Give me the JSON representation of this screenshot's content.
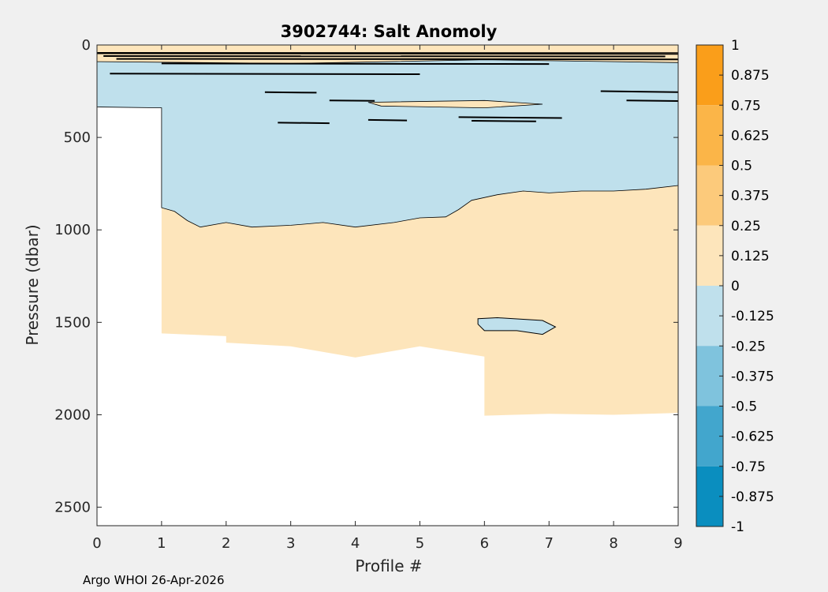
{
  "chart_data": {
    "type": "contour",
    "title": "3902744: Salt Anomoly",
    "xlabel": "Profile #",
    "ylabel": "Pressure (dbar)",
    "xlim": [
      0,
      9
    ],
    "ylim": [
      0,
      2600
    ],
    "y_reversed": true,
    "x_ticks": [
      "0",
      "1",
      "2",
      "3",
      "4",
      "5",
      "6",
      "7",
      "8",
      "9"
    ],
    "y_ticks": [
      "0",
      "500",
      "1000",
      "1500",
      "2000",
      "2500"
    ],
    "colorbar": {
      "range": [
        -1,
        1
      ],
      "tick_labels": [
        "1",
        "0.875",
        "0.75",
        "0.625",
        "0.5",
        "0.375",
        "0.25",
        "0.125",
        "0",
        "-0.125",
        "-0.25",
        "-0.375",
        "-0.5",
        "-0.625",
        "-0.75",
        "-0.875",
        "-1"
      ],
      "bands": [
        {
          "from": 0.75,
          "to": 1.0,
          "color": "#fa9e1a"
        },
        {
          "from": 0.5,
          "to": 0.75,
          "color": "#fbb548"
        },
        {
          "from": 0.25,
          "to": 0.5,
          "color": "#fcca7b"
        },
        {
          "from": 0.0,
          "to": 0.25,
          "color": "#fde5bb"
        },
        {
          "from": -0.25,
          "to": 0.0,
          "color": "#bfe0ec"
        },
        {
          "from": -0.5,
          "to": -0.25,
          "color": "#7fc3dd"
        },
        {
          "from": -0.75,
          "to": -0.5,
          "color": "#42a6cd"
        },
        {
          "from": -1.0,
          "to": -0.75,
          "color": "#0a8ebf"
        }
      ]
    },
    "data_bottom_pressure": [
      {
        "profile": 0,
        "pressure": 330
      },
      {
        "profile": 1,
        "pressure": 1560
      },
      {
        "profile": 2,
        "pressure": 1605
      },
      {
        "profile": 3,
        "pressure": 1630
      },
      {
        "profile": 4,
        "pressure": 1690
      },
      {
        "profile": 5,
        "pressure": 1630
      },
      {
        "profile": 6,
        "pressure": 2000
      },
      {
        "profile": 7,
        "pressure": 1995
      },
      {
        "profile": 8,
        "pressure": 2000
      },
      {
        "profile": 9,
        "pressure": 1990
      }
    ],
    "regions": [
      {
        "anomaly_range": [
          0,
          0.25
        ],
        "description": "surface layer",
        "pressure_range": [
          0,
          40
        ]
      },
      {
        "anomaly_range": [
          -0.25,
          0
        ],
        "description": "upper water column",
        "pressure_range": [
          40,
          990
        ]
      },
      {
        "anomaly_range": [
          0,
          0.25
        ],
        "description": "deep water column",
        "pressure_range": [
          800,
          2000
        ]
      },
      {
        "anomaly_range": [
          -0.25,
          0
        ],
        "description": "small patch near profile 7",
        "pressure_range": [
          1480,
          1560
        ]
      }
    ]
  },
  "footer": {
    "text": "Argo WHOI 26-Apr-2026"
  },
  "colors": {
    "background": "#f0f0f0",
    "plot_background": "#ffffff"
  }
}
